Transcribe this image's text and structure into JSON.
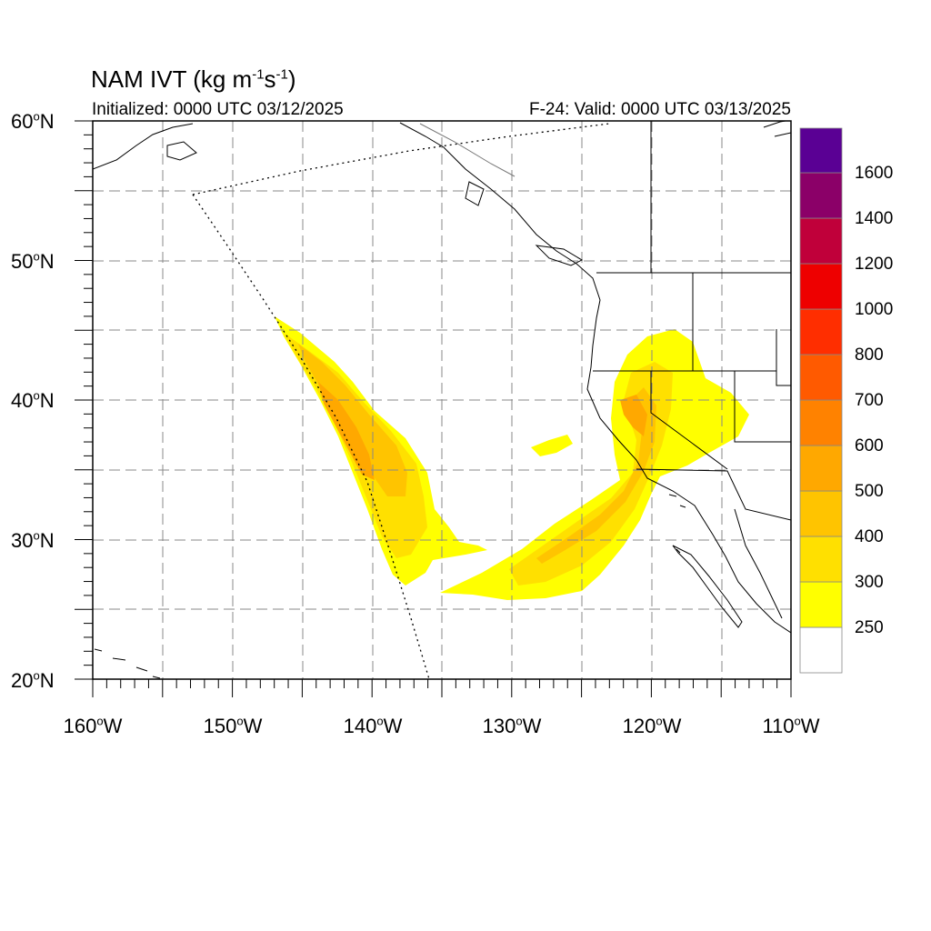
{
  "title": {
    "prefix": "NAM IVT (kg m",
    "exp1": "-1",
    "middle": "s",
    "exp2": "-1",
    "suffix": ")"
  },
  "initialized": "Initialized: 0000 UTC 03/12/2025",
  "valid": "F-24: Valid: 0000 UTC 03/13/2025",
  "map": {
    "lon_range": [
      -160,
      -110
    ],
    "lat_range": [
      20,
      60
    ],
    "lat_labels": [
      {
        "deg": "60",
        "hemi": "N"
      },
      {
        "deg": "50",
        "hemi": "N"
      },
      {
        "deg": "40",
        "hemi": "N"
      },
      {
        "deg": "30",
        "hemi": "N"
      },
      {
        "deg": "20",
        "hemi": "N"
      }
    ],
    "lon_labels": [
      {
        "deg": "160",
        "hemi": "W"
      },
      {
        "deg": "150",
        "hemi": "W"
      },
      {
        "deg": "140",
        "hemi": "W"
      },
      {
        "deg": "130",
        "hemi": "W"
      },
      {
        "deg": "120",
        "hemi": "W"
      },
      {
        "deg": "110",
        "hemi": "W"
      }
    ],
    "grid": "dashed every 5 degrees",
    "fields": {
      "pacific_plume": "IVT 250-500 along domain edge near 140W",
      "california_river": "IVT 250-500 from 25N 130W to northern California"
    }
  },
  "colorbar": {
    "colors": [
      "#ffffff",
      "#ffff00",
      "#ffe000",
      "#ffc400",
      "#ffa800",
      "#ff8200",
      "#ff5a00",
      "#ff2e00",
      "#ee0000",
      "#c0003a",
      "#8b0068",
      "#5a0094"
    ],
    "labels": [
      "250",
      "300",
      "400",
      "500",
      "600",
      "700",
      "800",
      "1000",
      "1200",
      "1400",
      "1600"
    ]
  }
}
